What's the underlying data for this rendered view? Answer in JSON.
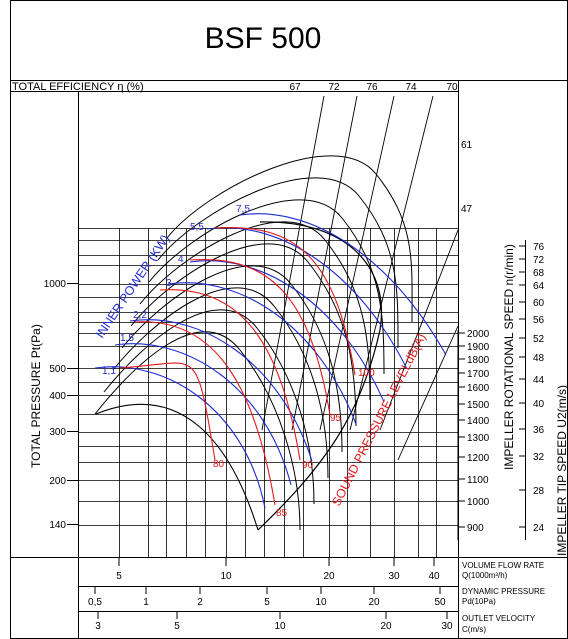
{
  "chart_data": {
    "type": "line",
    "title": "BSF 500",
    "efficiency_header": "TOTAL EFFICIENCY η (%)",
    "efficiency_values": [
      "67",
      "72",
      "76",
      "74",
      "70"
    ],
    "ylabel": "TOTAL PRESSURE Pt(Pa)",
    "y_ticks": [
      "1000",
      "500",
      "400",
      "300",
      "200",
      "140"
    ],
    "power_label": "INNER POWER (KW)",
    "power_values": [
      "1,1",
      "1,5",
      "2,2",
      "3",
      "4",
      "5,5",
      "7,5"
    ],
    "sound_label": "SOUND PRESSURE LEVELdB(A)",
    "sound_values": [
      "80",
      "85",
      "90",
      "95",
      "100"
    ],
    "speed_label": "IMPELLER ROTATIONAL SPEED n(r/min)",
    "speed_values": [
      "2000",
      "1900",
      "1800",
      "1700",
      "1600",
      "1500",
      "1400",
      "1300",
      "1200",
      "1100",
      "1000",
      "900"
    ],
    "tip_label": "IMPELLER TIP SPEED U2(m/s)",
    "tip_values": [
      "76",
      "72",
      "68",
      "64",
      "60",
      "56",
      "52",
      "48",
      "44",
      "40",
      "36",
      "32",
      "28",
      "24"
    ],
    "diagonal_values": [
      "61",
      "47"
    ],
    "flow_ticks": [
      "5",
      "10",
      "20",
      "30",
      "40"
    ],
    "flow_label_1": "VOLUME FLOW RATE",
    "flow_label_2": "Q(1000m³/h)",
    "dyn_ticks": [
      "0,5",
      "1",
      "2",
      "5",
      "10",
      "20",
      "50"
    ],
    "dyn_label_1": "DYNAMIC PRESSURE",
    "dyn_label_2": "Pd(10Pa)",
    "vel_ticks": [
      "3",
      "5",
      "10",
      "20",
      "30"
    ],
    "vel_label_1": "OUTLET VELOCITY",
    "vel_label_2": "C(m/s)"
  }
}
